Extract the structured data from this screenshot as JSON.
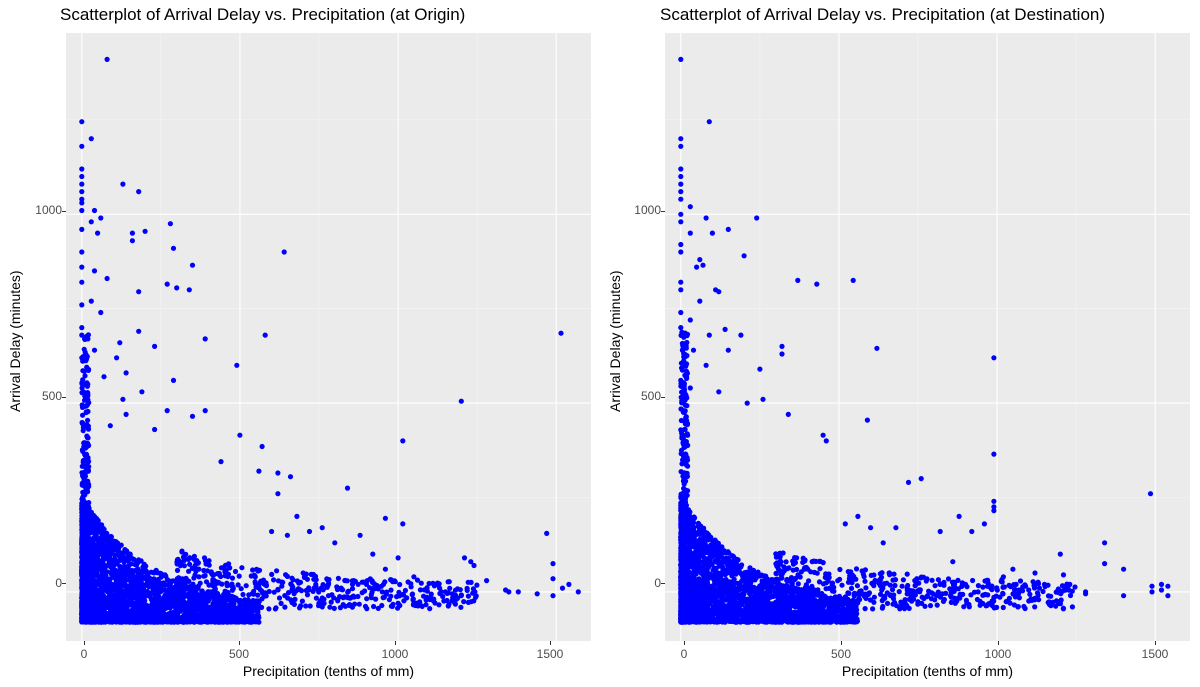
{
  "chart_data": [
    {
      "type": "scatter",
      "title": "Scatterplot of Arrival Delay vs. Precipitation (at Origin)",
      "xlabel": "Precipitation (tenths of mm)",
      "ylabel": "Arrival Delay (minutes)",
      "xlim": [
        -50,
        1610
      ],
      "ylim": [
        -130,
        1480
      ],
      "x_ticks": [
        0,
        500,
        1000,
        1500
      ],
      "y_ticks": [
        0,
        500,
        1000
      ],
      "grid": true,
      "point_color": "#0000ff",
      "points": [
        [
          80,
          1410
        ],
        [
          0,
          1245
        ],
        [
          30,
          1200
        ],
        [
          0,
          1180
        ],
        [
          0,
          1120
        ],
        [
          0,
          1100
        ],
        [
          0,
          1080
        ],
        [
          0,
          1060
        ],
        [
          0,
          1040
        ],
        [
          130,
          1080
        ],
        [
          180,
          1060
        ],
        [
          0,
          1030
        ],
        [
          0,
          1010
        ],
        [
          40,
          1010
        ],
        [
          60,
          990
        ],
        [
          30,
          980
        ],
        [
          0,
          960
        ],
        [
          50,
          950
        ],
        [
          160,
          950
        ],
        [
          160,
          930
        ],
        [
          200,
          955
        ],
        [
          280,
          975
        ],
        [
          290,
          910
        ],
        [
          350,
          865
        ],
        [
          640,
          900
        ],
        [
          0,
          900
        ],
        [
          0,
          860
        ],
        [
          40,
          850
        ],
        [
          80,
          830
        ],
        [
          0,
          820
        ],
        [
          270,
          815
        ],
        [
          300,
          805
        ],
        [
          340,
          800
        ],
        [
          180,
          795
        ],
        [
          0,
          760
        ],
        [
          30,
          770
        ],
        [
          60,
          740
        ],
        [
          0,
          700
        ],
        [
          0,
          680
        ],
        [
          180,
          690
        ],
        [
          120,
          660
        ],
        [
          390,
          670
        ],
        [
          580,
          680
        ],
        [
          1515,
          685
        ],
        [
          40,
          640
        ],
        [
          230,
          650
        ],
        [
          0,
          620
        ],
        [
          110,
          620
        ],
        [
          140,
          580
        ],
        [
          70,
          570
        ],
        [
          290,
          560
        ],
        [
          490,
          600
        ],
        [
          1200,
          505
        ],
        [
          130,
          510
        ],
        [
          190,
          530
        ],
        [
          270,
          480
        ],
        [
          390,
          480
        ],
        [
          350,
          465
        ],
        [
          140,
          470
        ],
        [
          90,
          440
        ],
        [
          230,
          430
        ],
        [
          500,
          415
        ],
        [
          1015,
          400
        ],
        [
          570,
          385
        ],
        [
          440,
          345
        ],
        [
          560,
          320
        ],
        [
          620,
          315
        ],
        [
          660,
          305
        ],
        [
          840,
          275
        ],
        [
          960,
          195
        ],
        [
          1015,
          180
        ],
        [
          1210,
          90
        ],
        [
          1230,
          80
        ],
        [
          1240,
          70
        ],
        [
          1280,
          30
        ],
        [
          1340,
          5
        ],
        [
          1380,
          0
        ],
        [
          1470,
          155
        ],
        [
          1490,
          75
        ],
        [
          1490,
          35
        ],
        [
          1520,
          10
        ],
        [
          1540,
          20
        ],
        [
          1570,
          0
        ],
        [
          1490,
          -10
        ],
        [
          1350,
          0
        ],
        [
          1440,
          -5
        ],
        [
          1200,
          -10
        ],
        [
          1150,
          0
        ],
        [
          1100,
          -20
        ],
        [
          1050,
          -30
        ],
        [
          1000,
          -30
        ],
        [
          950,
          0
        ],
        [
          900,
          20
        ],
        [
          860,
          30
        ],
        [
          820,
          10
        ],
        [
          780,
          -10
        ],
        [
          740,
          20
        ],
        [
          700,
          50
        ],
        [
          720,
          160
        ],
        [
          760,
          170
        ],
        [
          800,
          130
        ],
        [
          880,
          150
        ],
        [
          920,
          100
        ],
        [
          960,
          60
        ],
        [
          1000,
          90
        ],
        [
          1050,
          40
        ],
        [
          600,
          160
        ],
        [
          680,
          200
        ],
        [
          650,
          150
        ],
        [
          620,
          260
        ]
      ],
      "dense_regions": [
        {
          "x": [
            0,
            600
          ],
          "y": [
            -80,
            320
          ],
          "density": "high"
        },
        {
          "x": [
            0,
            40
          ],
          "y": [
            0,
            800
          ],
          "density": "high"
        }
      ]
    },
    {
      "type": "scatter",
      "title": "Scatterplot of Arrival Delay vs. Precipitation (at Destination)",
      "xlabel": "Precipitation (tenths of mm)",
      "ylabel": "Arrival Delay (minutes)",
      "xlim": [
        -50,
        1610
      ],
      "ylim": [
        -130,
        1480
      ],
      "x_ticks": [
        0,
        500,
        1000,
        1500
      ],
      "y_ticks": [
        0,
        500,
        1000
      ],
      "grid": true,
      "point_color": "#0000ff",
      "points": [
        [
          0,
          1410
        ],
        [
          90,
          1245
        ],
        [
          0,
          1200
        ],
        [
          0,
          1180
        ],
        [
          0,
          1120
        ],
        [
          0,
          1100
        ],
        [
          0,
          1080
        ],
        [
          0,
          1060
        ],
        [
          0,
          1040
        ],
        [
          30,
          1020
        ],
        [
          0,
          1000
        ],
        [
          80,
          990
        ],
        [
          240,
          990
        ],
        [
          0,
          980
        ],
        [
          100,
          950
        ],
        [
          150,
          960
        ],
        [
          30,
          950
        ],
        [
          0,
          920
        ],
        [
          0,
          900
        ],
        [
          60,
          880
        ],
        [
          200,
          890
        ],
        [
          70,
          865
        ],
        [
          50,
          860
        ],
        [
          370,
          825
        ],
        [
          430,
          815
        ],
        [
          545,
          825
        ],
        [
          0,
          820
        ],
        [
          0,
          800
        ],
        [
          110,
          800
        ],
        [
          120,
          795
        ],
        [
          60,
          770
        ],
        [
          0,
          740
        ],
        [
          30,
          720
        ],
        [
          0,
          700
        ],
        [
          140,
          695
        ],
        [
          90,
          680
        ],
        [
          190,
          680
        ],
        [
          320,
          650
        ],
        [
          320,
          630
        ],
        [
          620,
          645
        ],
        [
          990,
          620
        ],
        [
          40,
          640
        ],
        [
          150,
          640
        ],
        [
          80,
          600
        ],
        [
          250,
          590
        ],
        [
          0,
          560
        ],
        [
          30,
          540
        ],
        [
          120,
          530
        ],
        [
          210,
          500
        ],
        [
          260,
          510
        ],
        [
          590,
          455
        ],
        [
          340,
          470
        ],
        [
          450,
          415
        ],
        [
          460,
          400
        ],
        [
          1485,
          260
        ],
        [
          990,
          365
        ],
        [
          990,
          240
        ],
        [
          990,
          225
        ],
        [
          990,
          215
        ],
        [
          1200,
          100
        ],
        [
          1340,
          130
        ],
        [
          1340,
          75
        ],
        [
          1400,
          60
        ],
        [
          1400,
          -10
        ],
        [
          1490,
          15
        ],
        [
          1490,
          0
        ],
        [
          1520,
          20
        ],
        [
          1520,
          5
        ],
        [
          1540,
          -10
        ],
        [
          1540,
          15
        ],
        [
          1280,
          -5
        ],
        [
          1280,
          0
        ],
        [
          1150,
          20
        ],
        [
          1100,
          5
        ],
        [
          1060,
          20
        ],
        [
          1020,
          40
        ],
        [
          980,
          10
        ],
        [
          940,
          0
        ],
        [
          900,
          20
        ],
        [
          860,
          0
        ],
        [
          820,
          20
        ],
        [
          780,
          -10
        ],
        [
          740,
          30
        ],
        [
          760,
          300
        ],
        [
          720,
          290
        ],
        [
          680,
          170
        ],
        [
          640,
          130
        ],
        [
          600,
          170
        ],
        [
          560,
          200
        ],
        [
          520,
          180
        ],
        [
          880,
          200
        ],
        [
          920,
          160
        ],
        [
          960,
          180
        ],
        [
          1050,
          60
        ],
        [
          1120,
          50
        ],
        [
          1210,
          45
        ],
        [
          860,
          80
        ],
        [
          820,
          160
        ]
      ],
      "dense_regions": [
        {
          "x": [
            0,
            600
          ],
          "y": [
            -80,
            320
          ],
          "density": "high"
        },
        {
          "x": [
            0,
            40
          ],
          "y": [
            0,
            800
          ],
          "density": "high"
        }
      ]
    }
  ]
}
